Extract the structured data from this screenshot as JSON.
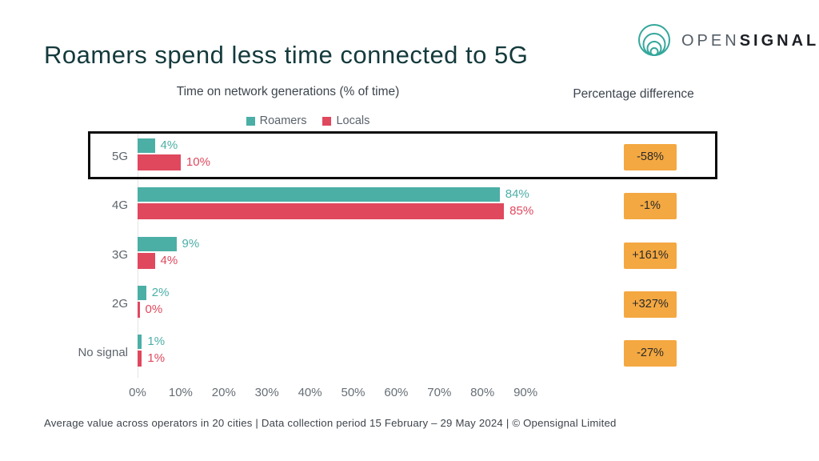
{
  "title": "Roamers spend less time connected to 5G",
  "logo": {
    "open": "OPEN",
    "signal": "SIGNAL",
    "ring_color": "#35a79c"
  },
  "chart_data": {
    "type": "bar",
    "orientation": "horizontal",
    "title": "Time on network generations (% of time)",
    "categories": [
      "5G",
      "4G",
      "3G",
      "2G",
      "No signal"
    ],
    "series": [
      {
        "name": "Roamers",
        "color": "#4BAFA6",
        "values": [
          4,
          84,
          9,
          2,
          1
        ],
        "labels": [
          "4%",
          "84%",
          "9%",
          "2%",
          "1%"
        ]
      },
      {
        "name": "Locals",
        "color": "#E0485E",
        "values": [
          10,
          85,
          4,
          0,
          1
        ],
        "labels": [
          "10%",
          "85%",
          "4%",
          "0%",
          "1%"
        ]
      }
    ],
    "percentage_difference": {
      "header": "Percentage difference",
      "values": [
        "-58%",
        "-1%",
        "+161%",
        "+327%",
        "-27%"
      ],
      "badge_color": "#F4A841"
    },
    "x_ticks": [
      "0%",
      "10%",
      "20%",
      "30%",
      "40%",
      "50%",
      "60%",
      "70%",
      "80%",
      "90%"
    ],
    "xlim": [
      0,
      90
    ],
    "grid": false,
    "legend_position": "top",
    "highlighted_category": "5G"
  },
  "footer": "Average value across operators in 20 cities | Data collection period 15 February – 29 May 2024  |  © Opensignal Limited"
}
